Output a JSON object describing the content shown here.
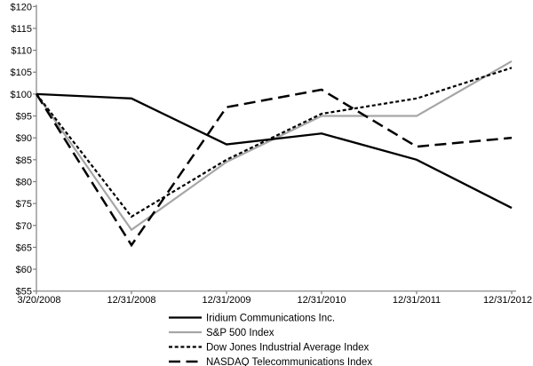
{
  "chart_data": {
    "type": "line",
    "title": "",
    "xlabel": "",
    "ylabel": "",
    "currency_prefix": "$",
    "x_labels": [
      "3/20/2008",
      "12/31/2008",
      "12/31/2009",
      "12/31/2010",
      "12/31/2011",
      "12/31/2012"
    ],
    "y_tick_labels": [
      "$120",
      "$115",
      "$110",
      "$105",
      "$100",
      "$95",
      "$90",
      "$85",
      "$80",
      "$75",
      "$70",
      "$65",
      "$60",
      "$55"
    ],
    "ylim": [
      55,
      120
    ],
    "y_tick_step": 5,
    "grid": false,
    "legend_position": "bottom",
    "series": [
      {
        "name": "Iridium Communications Inc.",
        "values": [
          100,
          99,
          88.5,
          91,
          85,
          74
        ],
        "color": "#000000",
        "line_style": "solid",
        "width": 2.3
      },
      {
        "name": "S&P 500 Index",
        "values": [
          100,
          69,
          84.5,
          95,
          95,
          107.5
        ],
        "color": "#a6a6a6",
        "line_style": "solid",
        "width": 2.2
      },
      {
        "name": "Dow Jones Industrial Average Index",
        "values": [
          100,
          72,
          85,
          95.5,
          99,
          106
        ],
        "color": "#000000",
        "line_style": "dotted",
        "width": 2.2
      },
      {
        "name": "NASDAQ Telecommunications Index",
        "values": [
          100,
          65.5,
          97,
          101,
          88,
          90
        ],
        "color": "#000000",
        "line_style": "longdash",
        "width": 2.5
      }
    ],
    "axis_color": "#808080",
    "text_color": "#000000"
  }
}
